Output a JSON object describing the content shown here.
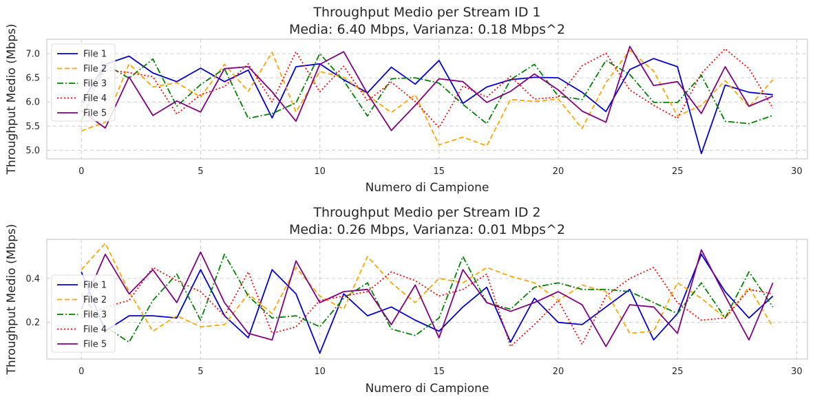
{
  "chart_data": [
    {
      "type": "line",
      "title": "Throughput Medio per Stream ID 1",
      "subtitle": "Media: 6.40 Mbps, Varianza: 0.18 Mbps^2",
      "xlabel": "Numero di Campione",
      "ylabel": "Throughput Medio (Mbps)",
      "xlim": [
        -1.45,
        30.45
      ],
      "ylim": [
        4.82,
        7.3
      ],
      "xticks": [
        0,
        5,
        10,
        15,
        20,
        25,
        30
      ],
      "yticks": [
        5.0,
        5.5,
        6.0,
        6.5,
        7.0
      ],
      "ytick_labels": [
        "5.0",
        "5.5",
        "6.0",
        "6.5",
        "7.0"
      ],
      "grid": true,
      "legend": "top-left",
      "x": [
        0,
        1,
        2,
        3,
        4,
        5,
        6,
        7,
        8,
        9,
        10,
        11,
        12,
        13,
        14,
        15,
        16,
        17,
        18,
        19,
        20,
        21,
        22,
        23,
        24,
        25,
        26,
        27,
        28,
        29
      ],
      "series": [
        {
          "name": "File 1",
          "color": "#0000cc",
          "dash": "solid",
          "values": [
            5.98,
            6.78,
            6.95,
            6.6,
            6.42,
            6.7,
            6.42,
            6.66,
            5.67,
            6.73,
            6.79,
            6.46,
            6.19,
            6.72,
            6.37,
            6.86,
            5.97,
            6.31,
            6.46,
            6.51,
            6.5,
            6.2,
            5.8,
            6.67,
            6.9,
            6.73,
            4.93,
            6.35,
            6.2,
            6.15
          ]
        },
        {
          "name": "File 2",
          "color": "#ffa500",
          "dash": "dashed",
          "values": [
            5.4,
            5.58,
            6.79,
            6.31,
            6.4,
            6.1,
            6.78,
            6.22,
            7.03,
            5.79,
            6.63,
            6.51,
            6.14,
            5.78,
            6.15,
            5.11,
            5.27,
            5.09,
            6.05,
            6.01,
            6.06,
            5.45,
            6.4,
            7.07,
            6.64,
            5.71,
            5.93,
            6.44,
            5.9,
            6.46
          ]
        },
        {
          "name": "File 3",
          "color": "#008000",
          "dash": "dashdot",
          "values": [
            5.62,
            6.78,
            6.49,
            6.89,
            5.91,
            6.36,
            6.69,
            5.66,
            5.76,
            5.98,
            7.0,
            6.44,
            5.71,
            6.48,
            6.5,
            6.39,
            5.95,
            5.55,
            6.46,
            6.78,
            6.12,
            6.05,
            6.86,
            6.57,
            5.99,
            5.99,
            6.55,
            5.6,
            5.55,
            5.72
          ]
        },
        {
          "name": "File 4",
          "color": "#ff0000",
          "dash": "dotted",
          "values": [
            5.91,
            6.66,
            6.61,
            6.52,
            5.75,
            6.15,
            6.32,
            6.79,
            6.0,
            7.04,
            6.21,
            6.74,
            6.02,
            6.41,
            6.01,
            5.47,
            6.33,
            6.1,
            6.53,
            6.06,
            6.1,
            6.75,
            7.01,
            6.25,
            5.93,
            5.66,
            6.59,
            7.1,
            6.69,
            5.87
          ]
        },
        {
          "name": "File 5",
          "color": "#800080",
          "dash": "solid",
          "values": [
            5.82,
            5.46,
            6.52,
            5.72,
            6.02,
            5.79,
            6.69,
            6.73,
            6.21,
            5.6,
            6.78,
            7.04,
            6.17,
            5.41,
            5.93,
            6.48,
            6.42,
            5.99,
            6.22,
            6.58,
            6.25,
            5.81,
            5.58,
            7.15,
            6.34,
            6.42,
            5.76,
            6.73,
            5.91,
            6.12
          ]
        }
      ]
    },
    {
      "type": "line",
      "title": "Throughput Medio per Stream ID 2",
      "subtitle": "Media: 0.26 Mbps, Varianza: 0.01 Mbps^2",
      "xlabel": "Numero di Campione",
      "ylabel": "Throughput Medio (Mbps)",
      "xlim": [
        -1.45,
        30.45
      ],
      "ylim": [
        0.033,
        0.578
      ],
      "xticks": [
        0,
        5,
        10,
        15,
        20,
        25,
        30
      ],
      "yticks": [
        0.2,
        0.4
      ],
      "ytick_labels": [
        "0.2",
        "0.4"
      ],
      "grid": true,
      "legend": "center-left",
      "x": [
        0,
        1,
        2,
        3,
        4,
        5,
        6,
        7,
        8,
        9,
        10,
        11,
        12,
        13,
        14,
        15,
        16,
        17,
        18,
        19,
        20,
        21,
        22,
        23,
        24,
        25,
        26,
        27,
        28,
        29
      ],
      "series": [
        {
          "name": "File 1",
          "color": "#0000cc",
          "dash": "solid",
          "values": [
            0.43,
            0.16,
            0.23,
            0.23,
            0.22,
            0.44,
            0.23,
            0.13,
            0.44,
            0.33,
            0.06,
            0.33,
            0.23,
            0.27,
            0.21,
            0.16,
            0.27,
            0.36,
            0.11,
            0.31,
            0.2,
            0.19,
            0.27,
            0.35,
            0.12,
            0.24,
            0.51,
            0.34,
            0.22,
            0.32
          ]
        },
        {
          "name": "File 2",
          "color": "#ffa500",
          "dash": "dashed",
          "values": [
            0.44,
            0.56,
            0.34,
            0.16,
            0.23,
            0.18,
            0.19,
            0.33,
            0.24,
            0.45,
            0.32,
            0.26,
            0.5,
            0.38,
            0.29,
            0.4,
            0.38,
            0.45,
            0.41,
            0.38,
            0.3,
            0.37,
            0.34,
            0.15,
            0.16,
            0.38,
            0.31,
            0.22,
            0.36,
            0.18
          ]
        },
        {
          "name": "File 3",
          "color": "#008000",
          "dash": "dashdot",
          "values": [
            0.33,
            0.18,
            0.11,
            0.3,
            0.42,
            0.21,
            0.51,
            0.32,
            0.22,
            0.23,
            0.18,
            0.31,
            0.38,
            0.17,
            0.14,
            0.22,
            0.5,
            0.29,
            0.26,
            0.36,
            0.38,
            0.35,
            0.35,
            0.34,
            0.29,
            0.24,
            0.38,
            0.22,
            0.43,
            0.27
          ]
        },
        {
          "name": "File 4",
          "color": "#ff0000",
          "dash": "dotted",
          "values": [
            0.22,
            0.27,
            0.3,
            0.45,
            0.39,
            0.34,
            0.23,
            0.43,
            0.15,
            0.18,
            0.3,
            0.32,
            0.34,
            0.43,
            0.39,
            0.32,
            0.35,
            0.42,
            0.09,
            0.19,
            0.3,
            0.1,
            0.32,
            0.4,
            0.45,
            0.29,
            0.21,
            0.22,
            0.35,
            0.33
          ]
        },
        {
          "name": "File 5",
          "color": "#800080",
          "dash": "solid",
          "values": [
            0.26,
            0.51,
            0.33,
            0.44,
            0.29,
            0.52,
            0.29,
            0.15,
            0.12,
            0.48,
            0.29,
            0.34,
            0.35,
            0.19,
            0.37,
            0.13,
            0.44,
            0.29,
            0.25,
            0.29,
            0.34,
            0.28,
            0.09,
            0.28,
            0.27,
            0.15,
            0.53,
            0.32,
            0.12,
            0.38
          ]
        }
      ]
    }
  ]
}
